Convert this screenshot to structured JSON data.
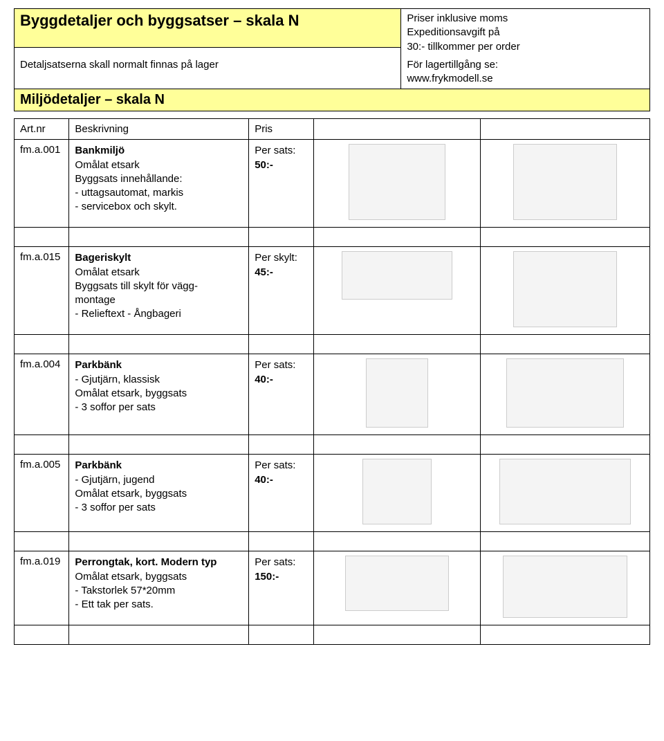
{
  "header": {
    "title_main": "Byggdetaljer och byggsatser – skala N",
    "subtitle": "Detaljsatserna skall normalt finnas på lager",
    "section_title": "Miljödetaljer – skala N",
    "note_line1": "Priser inklusive moms",
    "note_line2": "Expeditionsavgift på",
    "note_line3": "30:- tillkommer per order",
    "note_line4": "För lagertillgång se:",
    "note_line5": "www.frykmodell.se"
  },
  "columns": {
    "art": "Art.nr",
    "desc": "Beskrivning",
    "price": "Pris"
  },
  "rows": [
    {
      "art": "fm.a.001",
      "name": "Bankmiljö",
      "desc_lines": [
        "Omålat etsark",
        "Byggsats innehållande:",
        " - uttagsautomat, markis",
        " - servicebox och skylt."
      ],
      "price_label": "Per sats:",
      "price_value": " 50:-",
      "img1_w": 140,
      "img1_h": 110,
      "img2_w": 150,
      "img2_h": 110
    },
    {
      "art": "fm.a.015",
      "name": "Bageriskylt",
      "desc_lines": [
        "Omålat etsark",
        "Byggsats till skylt för vägg-",
        "montage",
        " - Relieftext -  Ångbageri"
      ],
      "price_label": "Per skylt:",
      "price_value": " 45:-",
      "img1_w": 160,
      "img1_h": 70,
      "img2_w": 150,
      "img2_h": 110
    },
    {
      "art": "fm.a.004",
      "name": "Parkbänk",
      "desc_lines": [
        "- Gjutjärn, klassisk",
        "Omålat etsark, byggsats",
        "  - 3 soffor per sats"
      ],
      "price_label": "Per sats:",
      "price_value": " 40:-",
      "img1_w": 90,
      "img1_h": 100,
      "img2_w": 170,
      "img2_h": 100
    },
    {
      "art": "fm.a.005",
      "name": "Parkbänk",
      "desc_lines": [
        "- Gjutjärn, jugend",
        "Omålat etsark, byggsats",
        "  - 3 soffor per sats"
      ],
      "price_label": "Per sats:",
      "price_value": " 40:-",
      "img1_w": 100,
      "img1_h": 95,
      "img2_w": 190,
      "img2_h": 95
    },
    {
      "art": "fm.a.019",
      "name": "Perrongtak, kort. Modern typ",
      "desc_lines": [
        "Omålat etsark, byggsats",
        " - Takstorlek 57*20mm",
        " - Ett tak per sats."
      ],
      "price_label": "Per sats:",
      "price_value": " 150:-",
      "img1_w": 150,
      "img1_h": 80,
      "img2_w": 180,
      "img2_h": 90
    }
  ],
  "colors": {
    "highlight_bg": "#ffff99",
    "border": "#000000",
    "placeholder_bg": "#f4f4f4"
  }
}
